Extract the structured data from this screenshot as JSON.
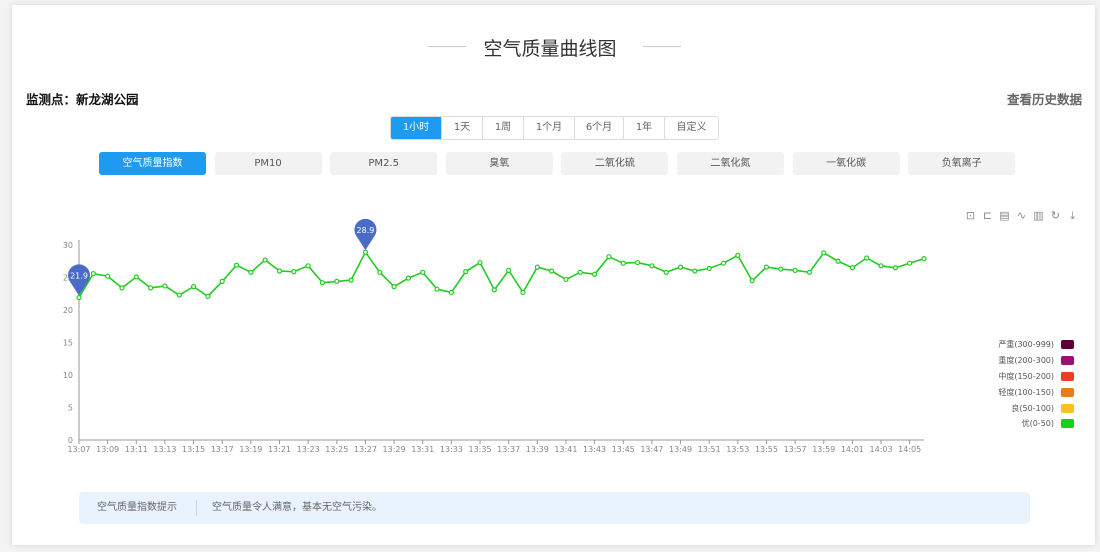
{
  "header": {
    "title": "空气质量曲线图",
    "station": "监测点：新龙湖公园",
    "history_link": "查看历史数据"
  },
  "time_ranges": [
    {
      "label": "1小时",
      "active": true
    },
    {
      "label": "1天"
    },
    {
      "label": "1周"
    },
    {
      "label": "1个月"
    },
    {
      "label": "6个月"
    },
    {
      "label": "1年"
    },
    {
      "label": "自定义"
    }
  ],
  "pollutant_tabs": [
    {
      "label": "空气质量指数",
      "active": true
    },
    {
      "label": "PM10"
    },
    {
      "label": "PM2.5"
    },
    {
      "label": "臭氧"
    },
    {
      "label": "二氧化硫"
    },
    {
      "label": "二氧化氮"
    },
    {
      "label": "一氧化碳"
    },
    {
      "label": "负氧离子"
    }
  ],
  "toolbox": [
    "zoom-icon",
    "zoom-reset-icon",
    "data-view-icon",
    "line-chart-icon",
    "bar-chart-icon",
    "restore-icon",
    "download-icon"
  ],
  "chart_data": {
    "type": "line",
    "title": "",
    "xlabel": "",
    "ylabel": "",
    "ylim": [
      0,
      30
    ],
    "yticks": [
      0,
      5,
      10,
      15,
      20,
      25,
      30
    ],
    "x": [
      "13:07",
      "13:08",
      "13:09",
      "13:10",
      "13:11",
      "13:12",
      "13:13",
      "13:14",
      "13:15",
      "13:16",
      "13:17",
      "13:18",
      "13:19",
      "13:20",
      "13:21",
      "13:22",
      "13:23",
      "13:24",
      "13:25",
      "13:26",
      "13:27",
      "13:28",
      "13:29",
      "13:30",
      "13:31",
      "13:32",
      "13:33",
      "13:34",
      "13:35",
      "13:36",
      "13:37",
      "13:38",
      "13:39",
      "13:40",
      "13:41",
      "13:42",
      "13:43",
      "13:44",
      "13:45",
      "13:46",
      "13:47",
      "13:48",
      "13:49",
      "13:50",
      "13:51",
      "13:52",
      "13:53",
      "13:54",
      "13:55",
      "13:56",
      "13:57",
      "13:58",
      "13:59",
      "14:00",
      "14:01",
      "14:02",
      "14:03",
      "14:04",
      "14:05",
      "14:06"
    ],
    "xtick_labels": [
      "13:07",
      "13:09",
      "13:11",
      "13:13",
      "13:15",
      "13:17",
      "13:19",
      "13:21",
      "13:23",
      "13:25",
      "13:27",
      "13:29",
      "13:31",
      "13:33",
      "13:35",
      "13:37",
      "13:39",
      "13:41",
      "13:43",
      "13:45",
      "13:47",
      "13:49",
      "13:51",
      "13:53",
      "13:55",
      "13:57",
      "13:59",
      "14:01",
      "14:03",
      "14:05"
    ],
    "series": [
      {
        "values": [
          21.9,
          25.6,
          25.2,
          23.4,
          25.1,
          23.4,
          23.7,
          22.3,
          23.6,
          22.1,
          24.4,
          26.9,
          25.8,
          27.7,
          26.0,
          25.9,
          26.8,
          24.2,
          24.4,
          24.6,
          28.9,
          25.8,
          23.6,
          24.9,
          25.8,
          23.2,
          22.7,
          25.9,
          27.3,
          23.1,
          26.1,
          22.7,
          26.6,
          26.0,
          24.7,
          25.8,
          25.5,
          28.2,
          27.2,
          27.3,
          26.8,
          25.8,
          26.6,
          26.0,
          26.4,
          27.2,
          28.4,
          24.5,
          26.6,
          26.3,
          26.1,
          25.8,
          28.8,
          27.5,
          26.5,
          28.0,
          26.8,
          26.5,
          27.2,
          27.9
        ],
        "color": "#22cc22"
      }
    ],
    "mark_points": [
      {
        "label": "21.9",
        "x": "13:07",
        "value": 21.9
      },
      {
        "label": "28.9",
        "x": "13:27",
        "value": 28.9
      }
    ],
    "mark_color": "#4a6bc8",
    "grid": false,
    "legend_position": "right",
    "visual_map": [
      {
        "label": "严重(300-999)",
        "color": "#5a0035"
      },
      {
        "label": "重度(200-300)",
        "color": "#9a1270"
      },
      {
        "label": "中度(150-200)",
        "color": "#f03a2a"
      },
      {
        "label": "轻度(100-150)",
        "color": "#e67e12"
      },
      {
        "label": "良(50-100)",
        "color": "#f2c41c"
      },
      {
        "label": "优(0-50)",
        "color": "#18d018"
      }
    ]
  },
  "tip": {
    "label": "空气质量指数提示",
    "message": "空气质量令人满意，基本无空气污染。"
  }
}
